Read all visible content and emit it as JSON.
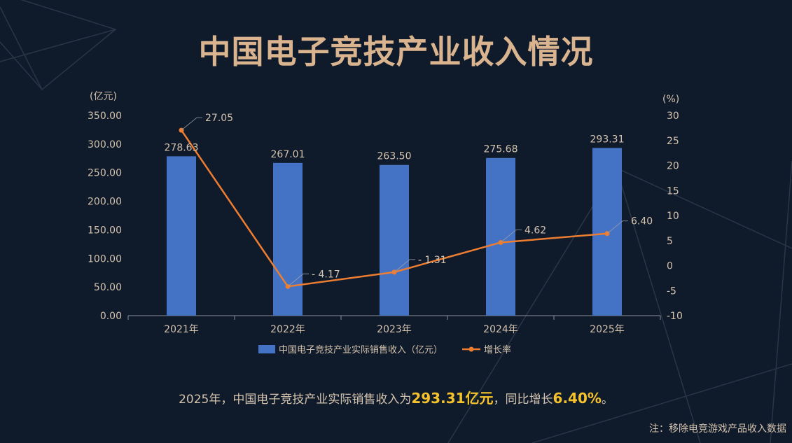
{
  "title": "中国电子竞技产业收入情况",
  "chart_data": {
    "type": "bar",
    "categories": [
      "2021年",
      "2022年",
      "2023年",
      "2024年",
      "2025年"
    ],
    "series": [
      {
        "name": "中国电子竞技产业实际销售收入（亿元）",
        "type": "bar",
        "axis": "left",
        "values": [
          278.63,
          267.01,
          263.5,
          275.68,
          293.31
        ],
        "labels": [
          "278.63",
          "267.01",
          "263.50",
          "275.68",
          "293.31"
        ]
      },
      {
        "name": "增长率",
        "type": "line",
        "axis": "right",
        "values": [
          27.05,
          -4.17,
          -1.31,
          4.62,
          6.4
        ],
        "labels": [
          "27.05",
          "- 4.17",
          "- 1.31",
          "4.62",
          "6.40"
        ]
      }
    ],
    "y_left": {
      "unit": "(亿元)",
      "ylim": [
        0,
        350
      ],
      "ticks": [
        "0.00",
        "50.00",
        "100.00",
        "150.00",
        "200.00",
        "250.00",
        "300.00",
        "350.00"
      ]
    },
    "y_right": {
      "unit": "(%)",
      "ylim": [
        -10,
        30
      ],
      "ticks": [
        "-10",
        "-5",
        "0",
        "5",
        "10",
        "15",
        "20",
        "25",
        "30"
      ]
    },
    "legend_position": "bottom",
    "colors": {
      "bar": "#4472c4",
      "line": "#ed7d31"
    }
  },
  "summary": {
    "prefix": "2025年，中国电子竞技产业实际销售收入为",
    "highlight_1": "293.31亿元",
    "middle": "，同比增长",
    "highlight_2": "6.40%",
    "suffix": "。"
  },
  "note": "注：移除电竞游戏产品收入数据"
}
